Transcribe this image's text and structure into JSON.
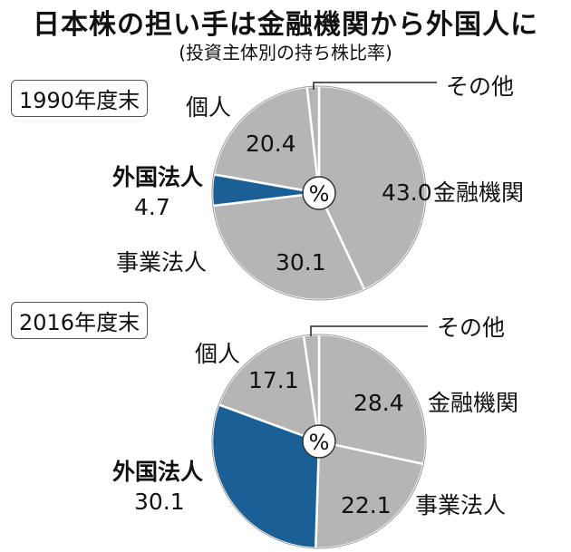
{
  "title": "日本株の担い手は金融機関から外国人に",
  "subtitle": "(投資主体別の持ち株比率)",
  "pct_symbol": "%",
  "colors": {
    "gray": "#b5b5b5",
    "blue": "#1a5f96",
    "edge": "#ffffff"
  },
  "chart_data": [
    {
      "type": "pie",
      "panel_label": "1990年度末",
      "unit": "%",
      "slices": [
        {
          "name": "金融機関",
          "value": 43.0,
          "value_label": "43.0",
          "color": "#b5b5b5"
        },
        {
          "name": "事業法人",
          "value": 30.1,
          "value_label": "30.1",
          "color": "#b5b5b5"
        },
        {
          "name": "外国法人",
          "value": 4.7,
          "value_label": "4.7",
          "color": "#1a5f96"
        },
        {
          "name": "個人",
          "value": 20.4,
          "value_label": "20.4",
          "color": "#b5b5b5"
        },
        {
          "name": "その他",
          "value": 1.8,
          "value_label": "",
          "color": "#b5b5b5"
        }
      ]
    },
    {
      "type": "pie",
      "panel_label": "2016年度末",
      "unit": "%",
      "slices": [
        {
          "name": "金融機関",
          "value": 28.4,
          "value_label": "28.4",
          "color": "#b5b5b5"
        },
        {
          "name": "事業法人",
          "value": 22.1,
          "value_label": "22.1",
          "color": "#b5b5b5"
        },
        {
          "name": "外国法人",
          "value": 30.1,
          "value_label": "30.1",
          "color": "#1a5f96"
        },
        {
          "name": "個人",
          "value": 17.1,
          "value_label": "17.1",
          "color": "#b5b5b5"
        },
        {
          "name": "その他",
          "value": 2.3,
          "value_label": "",
          "color": "#b5b5b5"
        }
      ]
    }
  ]
}
